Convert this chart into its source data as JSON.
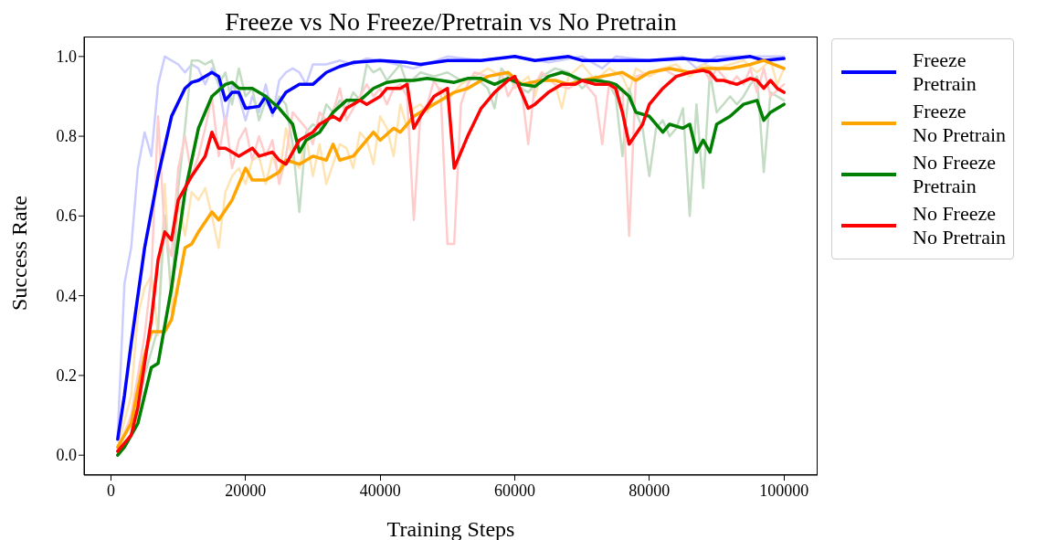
{
  "chart_data": {
    "type": "line",
    "title": "Freeze vs No Freeze/Pretrain vs No Pretrain",
    "xlabel": "Training Steps",
    "ylabel": "Success Rate",
    "xlim": [
      -4000,
      105000
    ],
    "xticks": [
      0,
      20000,
      40000,
      60000,
      80000,
      100000
    ],
    "ylim": [
      -0.05,
      1.05
    ],
    "yticks": [
      {
        "value": 0,
        "label": "0.0"
      },
      {
        "value": 0.2,
        "label": "0.2"
      },
      {
        "value": 0.4,
        "label": "0.4"
      },
      {
        "value": 0.6,
        "label": "0.6"
      },
      {
        "value": 0.8,
        "label": "0.8"
      },
      {
        "value": 1,
        "label": "1.0"
      }
    ],
    "legend": "right",
    "line_style": "solid",
    "marker": "none",
    "series": [
      {
        "color": "#ccccff",
        "x": [
          1000,
          2000,
          3000,
          4000,
          5000,
          6000,
          7000,
          8000,
          10000,
          11000,
          12000,
          13000,
          14000,
          15000,
          16000,
          17000,
          18000,
          19000,
          20000,
          21000,
          22000,
          23000,
          24000,
          25000,
          26000,
          27000,
          28000,
          29000,
          30000,
          32000,
          34000,
          36000,
          38000,
          40000,
          45000,
          50000,
          55000,
          60000,
          65000,
          70000,
          73000,
          75000,
          80000,
          85000,
          87000,
          90000,
          95000,
          100000
        ],
        "values": [
          0.05,
          0.43,
          0.52,
          0.72,
          0.81,
          0.75,
          0.93,
          1.0,
          0.98,
          0.96,
          0.98,
          0.97,
          0.93,
          0.97,
          0.93,
          0.83,
          0.93,
          0.9,
          0.84,
          0.9,
          0.86,
          0.93,
          0.85,
          0.94,
          0.96,
          0.97,
          0.96,
          0.93,
          0.98,
          0.98,
          0.99,
          0.98,
          0.995,
          0.99,
          0.97,
          1.0,
          0.99,
          1.0,
          0.985,
          1.0,
          0.97,
          1.0,
          0.99,
          1.0,
          0.97,
          1.0,
          1.0,
          1.0
        ]
      },
      {
        "color": "#ffe4b3",
        "x": [
          1000,
          3000,
          4000,
          5000,
          6000,
          7000,
          8000,
          9000,
          10000,
          11000,
          12000,
          13000,
          14000,
          15000,
          16000,
          17000,
          18000,
          19000,
          20000,
          21000,
          22000,
          23000,
          24000,
          25000,
          26000,
          27000,
          28000,
          29000,
          30000,
          31000,
          32000,
          33000,
          34000,
          35000,
          36000,
          37000,
          38000,
          39000,
          40000,
          41000,
          42000,
          43000,
          44000,
          45000,
          46000,
          47000,
          48000,
          49000,
          50000,
          52000,
          54000,
          56000,
          58000,
          59000,
          60000,
          62000,
          63000,
          64000,
          66000,
          67000,
          68000,
          70000,
          72000,
          74000,
          76000,
          77000,
          78000,
          80000,
          82000,
          84000,
          86000,
          88000,
          90000,
          92000,
          94000,
          96000,
          98000,
          99000,
          100000
        ],
        "values": [
          0.02,
          0.15,
          0.35,
          0.42,
          0.45,
          0.3,
          0.68,
          0.36,
          0.65,
          0.55,
          0.66,
          0.64,
          0.67,
          0.6,
          0.52,
          0.66,
          0.7,
          0.72,
          0.68,
          0.74,
          0.75,
          0.68,
          0.75,
          0.7,
          0.82,
          0.74,
          0.72,
          0.8,
          0.7,
          0.78,
          0.68,
          0.73,
          0.78,
          0.77,
          0.72,
          0.81,
          0.79,
          0.73,
          0.85,
          0.82,
          0.75,
          0.88,
          0.82,
          0.87,
          0.88,
          0.86,
          0.9,
          0.92,
          0.89,
          0.93,
          0.95,
          0.97,
          0.95,
          0.96,
          0.92,
          0.95,
          0.9,
          0.96,
          0.93,
          0.87,
          0.95,
          0.98,
          0.94,
          0.97,
          0.95,
          0.91,
          0.97,
          0.95,
          0.97,
          0.98,
          0.95,
          0.98,
          0.97,
          0.98,
          0.99,
          0.96,
          0.99,
          0.93,
          0.97
        ]
      },
      {
        "color": "#c3dcc3",
        "x": [
          1000,
          3000,
          5000,
          7000,
          8000,
          9000,
          10000,
          11000,
          12000,
          13000,
          14000,
          15000,
          16000,
          17000,
          18000,
          19000,
          20000,
          21000,
          22000,
          23000,
          24000,
          25000,
          26000,
          27000,
          28000,
          29000,
          30000,
          31000,
          32000,
          33000,
          34000,
          35000,
          36000,
          37000,
          38000,
          39000,
          40000,
          41000,
          43000,
          44000,
          46000,
          48000,
          50000,
          52000,
          54000,
          56000,
          57000,
          58000,
          60000,
          62000,
          64000,
          66000,
          68000,
          70000,
          72000,
          74000,
          75000,
          76000,
          77000,
          78000,
          79000,
          80000,
          81000,
          82000,
          83000,
          84000,
          85000,
          86000,
          87000,
          88000,
          89000,
          90000,
          91000,
          92000,
          93000,
          94000,
          95000,
          96000,
          97000,
          98000,
          100000
        ],
        "values": [
          0.0,
          0.05,
          0.2,
          0.32,
          0.6,
          0.4,
          0.67,
          0.82,
          0.99,
          0.99,
          0.98,
          0.99,
          0.93,
          0.96,
          0.88,
          0.97,
          0.9,
          0.92,
          0.84,
          0.89,
          0.86,
          0.9,
          0.88,
          0.78,
          0.61,
          0.81,
          0.83,
          0.82,
          0.88,
          0.86,
          0.89,
          0.87,
          0.91,
          0.89,
          0.98,
          0.96,
          0.97,
          0.94,
          0.98,
          0.93,
          0.96,
          0.95,
          0.96,
          0.94,
          0.95,
          0.92,
          0.87,
          0.97,
          0.93,
          0.91,
          0.95,
          0.97,
          0.96,
          0.92,
          0.95,
          0.93,
          0.9,
          0.75,
          0.92,
          0.86,
          0.82,
          0.7,
          0.82,
          0.84,
          0.8,
          0.82,
          0.87,
          0.6,
          0.88,
          0.67,
          0.96,
          0.86,
          0.88,
          0.9,
          0.88,
          0.9,
          0.93,
          0.95,
          0.71,
          0.91,
          0.89
        ]
      },
      {
        "color": "#ffcccc",
        "x": [
          1000,
          3000,
          5000,
          6000,
          7000,
          8000,
          9000,
          10000,
          11000,
          12000,
          13000,
          14000,
          15000,
          16000,
          17000,
          18000,
          19000,
          20000,
          21000,
          22000,
          23000,
          24000,
          25000,
          26000,
          27000,
          28000,
          29000,
          30000,
          31000,
          32000,
          33000,
          34000,
          35000,
          36000,
          37000,
          38000,
          39000,
          40000,
          41000,
          42000,
          43000,
          44000,
          45000,
          46000,
          47000,
          48000,
          49000,
          50000,
          51000,
          52000,
          53000,
          54000,
          56000,
          58000,
          59000,
          60000,
          61000,
          62000,
          63000,
          64000,
          66000,
          68000,
          70000,
          72000,
          73000,
          74000,
          75000,
          76000,
          77000,
          78000,
          80000,
          82000,
          84000,
          86000,
          88000,
          89000,
          90000,
          92000,
          93000,
          94000,
          95000,
          96000,
          97000,
          98000,
          100000
        ],
        "values": [
          0.01,
          0.1,
          0.3,
          0.45,
          0.85,
          0.55,
          0.5,
          0.72,
          0.8,
          0.7,
          0.75,
          0.82,
          0.9,
          0.75,
          0.85,
          0.72,
          0.79,
          0.82,
          0.74,
          0.8,
          0.75,
          0.79,
          0.68,
          0.75,
          0.86,
          0.84,
          0.82,
          0.78,
          0.86,
          0.84,
          0.86,
          0.92,
          0.84,
          0.87,
          0.9,
          0.93,
          0.9,
          0.92,
          0.88,
          0.92,
          0.93,
          0.9,
          0.59,
          0.86,
          0.88,
          0.94,
          0.91,
          0.53,
          0.53,
          0.88,
          0.93,
          0.96,
          0.95,
          0.96,
          0.9,
          0.93,
          0.92,
          0.78,
          0.93,
          0.96,
          0.93,
          0.92,
          0.94,
          0.9,
          0.78,
          0.93,
          0.91,
          0.92,
          0.55,
          0.95,
          0.96,
          0.97,
          0.95,
          0.96,
          0.97,
          0.94,
          0.97,
          0.93,
          0.95,
          0.93,
          0.97,
          0.91,
          0.97,
          0.9,
          0.93
        ]
      },
      {
        "name": "Freeze\nPretrain",
        "color": "#0000ff",
        "x": [
          1000,
          2000,
          3000,
          5000,
          7000,
          9000,
          11000,
          12000,
          13000,
          15000,
          16000,
          17000,
          18000,
          19000,
          20000,
          22000,
          23000,
          24000,
          26000,
          28000,
          30000,
          32000,
          34000,
          36000,
          40000,
          44000,
          46000,
          50000,
          55000,
          60000,
          63000,
          68000,
          70000,
          75000,
          80000,
          85000,
          88000,
          90000,
          95000,
          97000,
          100000
        ],
        "values": [
          0.04,
          0.15,
          0.28,
          0.52,
          0.7,
          0.85,
          0.92,
          0.935,
          0.94,
          0.96,
          0.95,
          0.89,
          0.91,
          0.91,
          0.87,
          0.875,
          0.9,
          0.86,
          0.91,
          0.93,
          0.93,
          0.96,
          0.975,
          0.985,
          0.99,
          0.985,
          0.98,
          0.99,
          0.99,
          1.0,
          0.99,
          1.0,
          0.99,
          0.99,
          0.99,
          0.995,
          0.99,
          0.99,
          1.0,
          0.99,
          0.995
        ]
      },
      {
        "name": "Freeze\nNo Pretrain",
        "color": "#ffa500",
        "x": [
          1000,
          3000,
          5000,
          6000,
          8000,
          9000,
          11000,
          12000,
          13000,
          15000,
          16000,
          18000,
          20000,
          21000,
          23000,
          25000,
          26000,
          28000,
          30000,
          32000,
          33000,
          34000,
          36000,
          37000,
          39000,
          40000,
          42000,
          43000,
          45000,
          47000,
          49000,
          51000,
          53000,
          56000,
          59000,
          61000,
          64000,
          66000,
          68000,
          70000,
          73000,
          76000,
          78000,
          80000,
          83000,
          86000,
          88000,
          92000,
          95000,
          97000,
          100000
        ],
        "values": [
          0.02,
          0.08,
          0.25,
          0.31,
          0.31,
          0.34,
          0.52,
          0.53,
          0.56,
          0.61,
          0.59,
          0.64,
          0.72,
          0.69,
          0.69,
          0.71,
          0.74,
          0.73,
          0.75,
          0.74,
          0.78,
          0.74,
          0.75,
          0.77,
          0.81,
          0.79,
          0.82,
          0.81,
          0.85,
          0.87,
          0.89,
          0.91,
          0.92,
          0.95,
          0.96,
          0.93,
          0.94,
          0.94,
          0.93,
          0.94,
          0.95,
          0.96,
          0.94,
          0.96,
          0.97,
          0.96,
          0.97,
          0.97,
          0.98,
          0.99,
          0.97
        ]
      },
      {
        "name": "No Freeze\nPretrain",
        "color": "#008000",
        "x": [
          1000,
          2000,
          4000,
          6000,
          7000,
          9000,
          11000,
          13000,
          15000,
          17000,
          18000,
          19000,
          21000,
          23000,
          25000,
          27000,
          28000,
          29000,
          31000,
          33000,
          35000,
          37000,
          39000,
          41000,
          43000,
          45000,
          47000,
          49000,
          51000,
          53000,
          55000,
          57000,
          59000,
          61000,
          63000,
          65000,
          67000,
          68000,
          70000,
          72000,
          74000,
          75000,
          77000,
          78000,
          80000,
          82000,
          83000,
          85000,
          86000,
          87000,
          88000,
          89000,
          90000,
          92000,
          94000,
          96000,
          97000,
          98000,
          100000
        ],
        "values": [
          0.0,
          0.02,
          0.08,
          0.22,
          0.23,
          0.42,
          0.66,
          0.82,
          0.9,
          0.93,
          0.935,
          0.92,
          0.92,
          0.9,
          0.87,
          0.83,
          0.76,
          0.79,
          0.81,
          0.86,
          0.89,
          0.89,
          0.92,
          0.935,
          0.94,
          0.94,
          0.945,
          0.94,
          0.935,
          0.945,
          0.945,
          0.93,
          0.945,
          0.93,
          0.925,
          0.95,
          0.96,
          0.955,
          0.94,
          0.94,
          0.935,
          0.93,
          0.9,
          0.86,
          0.85,
          0.81,
          0.83,
          0.82,
          0.83,
          0.76,
          0.79,
          0.76,
          0.83,
          0.85,
          0.88,
          0.89,
          0.84,
          0.86,
          0.88
        ]
      },
      {
        "name": "No Freeze\nNo Pretrain",
        "color": "#ff0000",
        "x": [
          1000,
          3000,
          4000,
          5000,
          6000,
          7000,
          8000,
          9000,
          10000,
          12000,
          14000,
          15000,
          16000,
          17000,
          18000,
          19000,
          21000,
          22000,
          24000,
          25000,
          26000,
          27000,
          28000,
          29000,
          30000,
          31000,
          33000,
          34000,
          35000,
          37000,
          38000,
          40000,
          41000,
          43000,
          44000,
          45000,
          46000,
          48000,
          50000,
          51000,
          53000,
          55000,
          57000,
          59000,
          60000,
          62000,
          63000,
          65000,
          67000,
          69000,
          70000,
          72000,
          74000,
          75000,
          76000,
          77000,
          79000,
          80000,
          82000,
          84000,
          86000,
          88000,
          89000,
          90000,
          91000,
          93000,
          95000,
          96000,
          97000,
          98000,
          99000,
          100000
        ],
        "values": [
          0.01,
          0.05,
          0.12,
          0.23,
          0.34,
          0.49,
          0.56,
          0.54,
          0.64,
          0.7,
          0.75,
          0.81,
          0.77,
          0.77,
          0.76,
          0.75,
          0.77,
          0.75,
          0.76,
          0.74,
          0.73,
          0.76,
          0.79,
          0.8,
          0.81,
          0.83,
          0.85,
          0.84,
          0.87,
          0.89,
          0.88,
          0.9,
          0.92,
          0.92,
          0.93,
          0.82,
          0.85,
          0.9,
          0.92,
          0.72,
          0.8,
          0.87,
          0.91,
          0.94,
          0.95,
          0.87,
          0.88,
          0.91,
          0.93,
          0.93,
          0.94,
          0.93,
          0.93,
          0.92,
          0.86,
          0.78,
          0.83,
          0.88,
          0.92,
          0.95,
          0.96,
          0.965,
          0.96,
          0.94,
          0.94,
          0.93,
          0.945,
          0.94,
          0.92,
          0.94,
          0.92,
          0.91
        ]
      }
    ]
  }
}
